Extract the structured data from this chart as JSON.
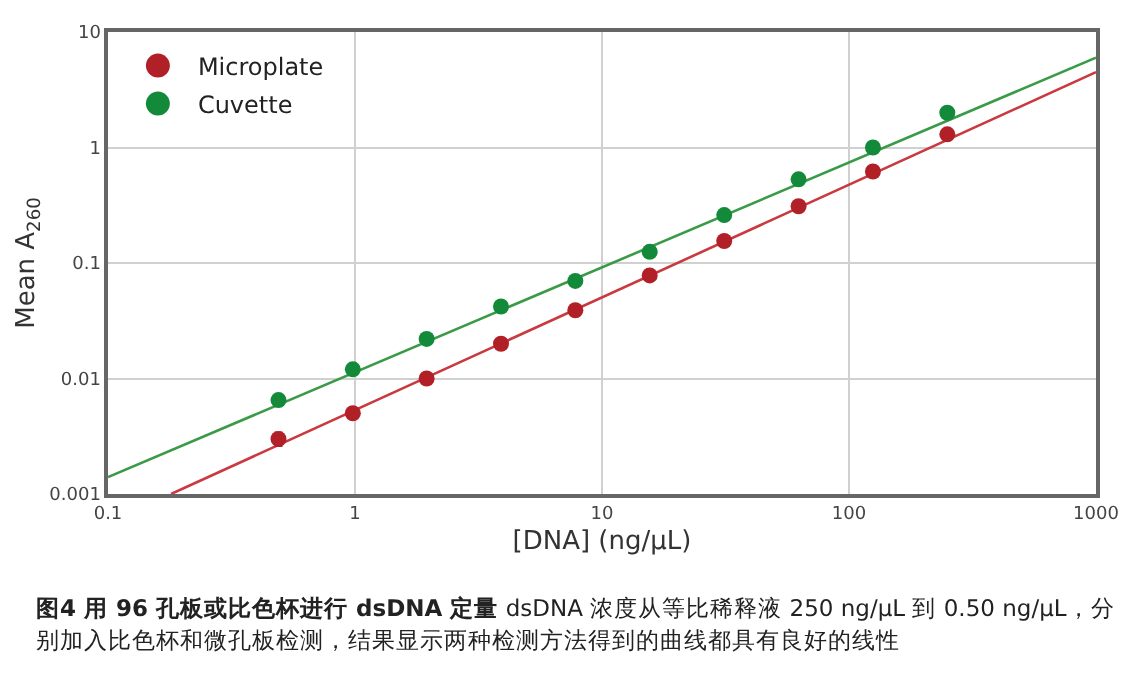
{
  "chart_data": {
    "type": "scatter",
    "title": "图4  用 96 孔板或比色杯进行 dsDNA 定量",
    "subtitle": "dsDNA 浓度从等比稀释液 250 ng/μL 到 0.50 ng/μL，分别加入比色杯和微孔板检测，结果显示两种检测方法得到的曲线都具有良好的线性",
    "xlabel": "[DNA] (ng/μL)",
    "ylabel": "Mean A$_{260}$",
    "x": [
      0.49,
      0.98,
      1.95,
      3.9,
      7.8,
      15.6,
      31.25,
      62.5,
      125,
      250
    ],
    "series": [
      {
        "name": "Microplate",
        "color": "#b22027",
        "values": [
          0.003,
          0.005,
          0.01,
          0.02,
          0.039,
          0.078,
          0.155,
          0.31,
          0.62,
          1.3
        ],
        "errors": [
          [
            0.0026,
            0.0034
          ],
          null,
          null,
          null,
          null,
          null,
          null,
          null,
          null,
          null
        ]
      },
      {
        "name": "Cuvette",
        "color": "#138a3a",
        "values": [
          0.0065,
          0.012,
          0.022,
          0.042,
          0.07,
          0.125,
          0.26,
          0.53,
          1.0,
          2.0
        ]
      },
      {
        "type": "line",
        "marker": "none",
        "color": "#c9393f",
        "x": [
          0.18,
          1000
        ],
        "values": [
          0.001,
          4.5
        ]
      },
      {
        "type": "line",
        "marker": "none",
        "color": "#3b9a47",
        "x": [
          0.1,
          1000
        ],
        "values": [
          0.0014,
          6
        ]
      }
    ],
    "log": "xy",
    "xlim": [
      0.1,
      1000
    ],
    "ylim": [
      0.001,
      10
    ],
    "xticks": [
      0.1,
      1,
      10,
      100,
      1000
    ],
    "yticks": [
      0.001,
      0.01,
      0.1,
      1,
      10
    ],
    "grid": true,
    "legend": "top left",
    "marker": "circle"
  }
}
